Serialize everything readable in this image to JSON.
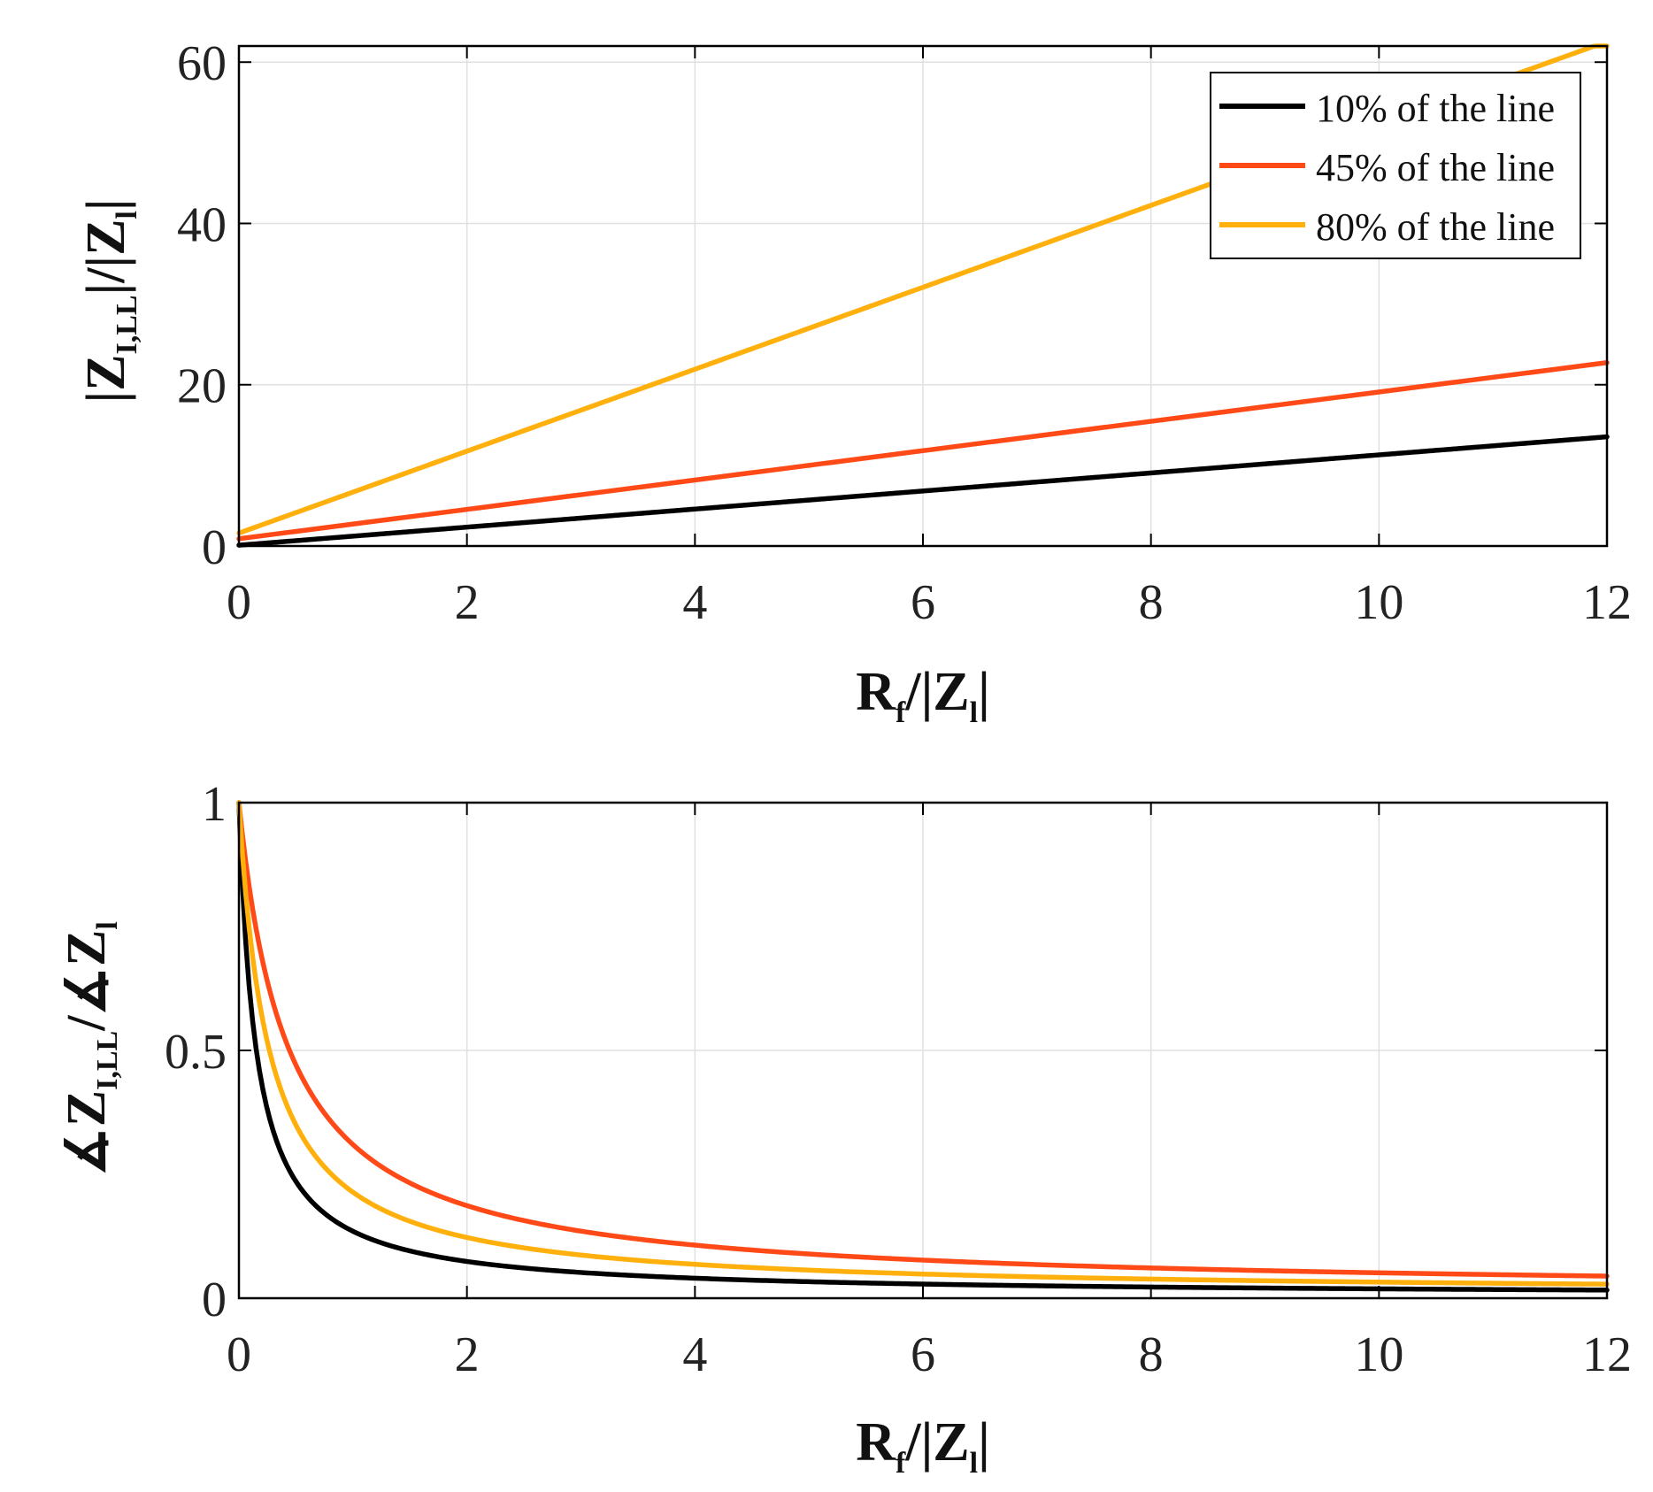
{
  "chart_data": [
    {
      "type": "line",
      "x_range": [
        0,
        12
      ],
      "xlim": [
        0,
        12
      ],
      "ylim": [
        0,
        62
      ],
      "xticks": [
        0,
        2,
        4,
        6,
        8,
        10,
        12
      ],
      "yticks": [
        0,
        20,
        40,
        60
      ],
      "xtick_labels": [
        "0",
        "2",
        "4",
        "6",
        "8",
        "10",
        "12"
      ],
      "ytick_labels": [
        "0",
        "20",
        "40",
        "60"
      ],
      "grid": true,
      "legend_position": "top-right",
      "xlabel": {
        "main": "R",
        "sub": "f",
        "rest": "/|Z",
        "sub2": "l",
        "end": "|"
      },
      "ylabel": {
        "main": "|Z",
        "sub": "I,LL",
        "rest": "|/|Z",
        "sub2": "l",
        "end": "|"
      },
      "series": [
        {
          "name": "10% of the line",
          "color": "#000000",
          "slope": 1.12,
          "intercept": 0.1
        },
        {
          "name": "45% of the line",
          "color": "#ff4a17",
          "slope": 1.82,
          "intercept": 0.9
        },
        {
          "name": "80% of the line",
          "color": "#ffb00d",
          "slope": 5.08,
          "intercept": 1.6
        }
      ]
    },
    {
      "type": "line",
      "x_range": [
        0,
        12
      ],
      "xlim": [
        0,
        12
      ],
      "ylim": [
        0,
        1
      ],
      "xticks": [
        0,
        2,
        4,
        6,
        8,
        10,
        12
      ],
      "yticks": [
        0,
        0.5,
        1
      ],
      "xtick_labels": [
        "0",
        "2",
        "4",
        "6",
        "8",
        "10",
        "12"
      ],
      "ytick_labels": [
        "0",
        "0.5",
        "1"
      ],
      "grid": true,
      "xlabel": {
        "main": "R",
        "sub": "f",
        "rest": "/|Z",
        "sub2": "l",
        "end": "|"
      },
      "ylabel": {
        "main": "∡Z",
        "sub": "I,LL",
        "rest": "/∡Z",
        "sub2": "l",
        "end": ""
      },
      "series": [
        {
          "name": "10% of the line",
          "color": "#000000",
          "decay_k": 6.6,
          "floor": 0.004
        },
        {
          "name": "45% of the line",
          "color": "#ff4a17",
          "decay_k": 2.3,
          "floor": 0.01
        },
        {
          "name": "80% of the line",
          "color": "#ffb00d",
          "decay_k": 3.8,
          "floor": 0.007
        }
      ]
    }
  ]
}
